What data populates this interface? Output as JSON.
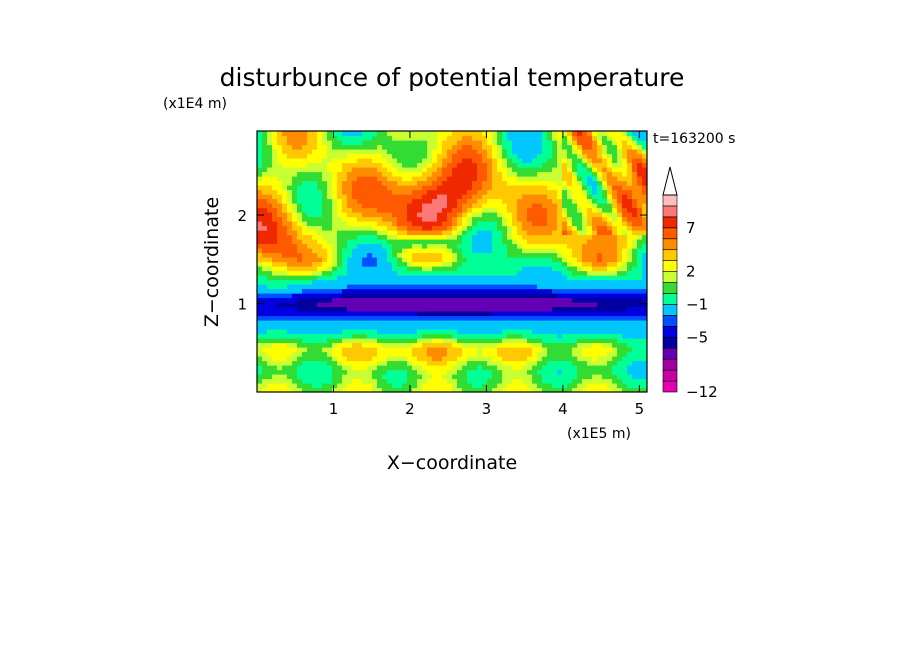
{
  "chart_data": {
    "type": "heatmap",
    "title": "disturbunce of potential temperature",
    "time_label": "t=163200 s",
    "xlabel": "X−coordinate",
    "ylabel": "Z−coordinate",
    "x_unit": "(x1E5 m)",
    "y_unit": "(x1E4 m)",
    "xlim": [
      0,
      5.1
    ],
    "ylim": [
      0,
      2.95
    ],
    "x_ticks": [
      "1",
      "2",
      "3",
      "4",
      "5"
    ],
    "y_ticks": [
      "1",
      "2"
    ],
    "colorbar": {
      "colors": [
        "#e600b4",
        "#c800a6",
        "#a000a0",
        "#6400b4",
        "#0000a0",
        "#0000e0",
        "#0050ff",
        "#00c8ff",
        "#00ff96",
        "#32dc32",
        "#c8ff32",
        "#ffff00",
        "#ffc800",
        "#ff8c00",
        "#ff5a00",
        "#f02800",
        "#ff7878",
        "#ffbebe"
      ],
      "labels": [
        "−12",
        "−5",
        "−1",
        "2",
        "7"
      ],
      "extend": "max-triangle"
    },
    "fields": [
      {
        "name": "deep-blue-band",
        "x": 2.55,
        "z": 1.0,
        "sx": 2.4,
        "sz": 0.1,
        "v": -5
      },
      {
        "name": "warm-upper-center",
        "x": 2.3,
        "z": 2.2,
        "sx": 0.5,
        "sz": 0.3,
        "v": 8
      },
      {
        "name": "warm-upper-left",
        "x": 0.3,
        "z": 1.8,
        "sx": 0.35,
        "sz": 0.4,
        "v": 5
      },
      {
        "name": "warm-upper-right",
        "x": 4.6,
        "z": 2.0,
        "sx": 0.5,
        "sz": 0.4,
        "v": 4
      },
      {
        "name": "warm-low-center",
        "x": 2.3,
        "z": 0.4,
        "sx": 1.3,
        "sz": 0.15,
        "v": 3
      },
      {
        "name": "cold-spot-center",
        "x": 2.2,
        "z": 1.7,
        "sx": 0.25,
        "sz": 0.08,
        "v": -6
      }
    ]
  }
}
